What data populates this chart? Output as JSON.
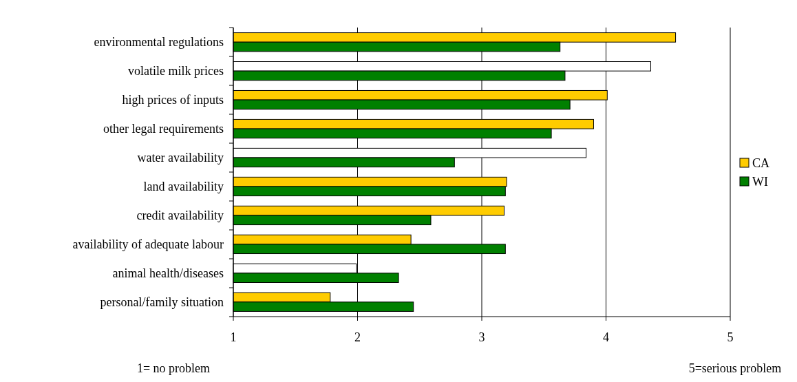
{
  "chart_data": {
    "type": "bar",
    "orientation": "horizontal",
    "categories": [
      "environmental regulations",
      "volatile milk prices",
      "high prices of inputs",
      "other legal requirements",
      "water availability",
      "land availability",
      "credit availability ",
      "availability of adequate labour",
      "animal health/diseases",
      "personal/family situation"
    ],
    "series": [
      {
        "name": "CA",
        "color": "#ffcc00",
        "colors": [
          "#ffcc00",
          "#ffffff",
          "#ffcc00",
          "#ffcc00",
          "#ffffff",
          "#ffcc00",
          "#ffcc00",
          "#ffcc00",
          "#ffffff",
          "#ffcc00"
        ],
        "values": [
          4.56,
          4.36,
          4.01,
          3.9,
          3.84,
          3.2,
          3.18,
          2.43,
          1.99,
          1.78
        ]
      },
      {
        "name": "WI",
        "color": "#008000",
        "values": [
          3.63,
          3.67,
          3.71,
          3.56,
          2.78,
          3.19,
          2.59,
          3.19,
          2.33,
          2.45
        ]
      }
    ],
    "xlim": [
      1,
      5
    ],
    "xticks": [
      1,
      2,
      3,
      4,
      5
    ],
    "grid": "x",
    "legend": "right",
    "annotations": [
      "1= no problem",
      "5=serious problem"
    ]
  }
}
